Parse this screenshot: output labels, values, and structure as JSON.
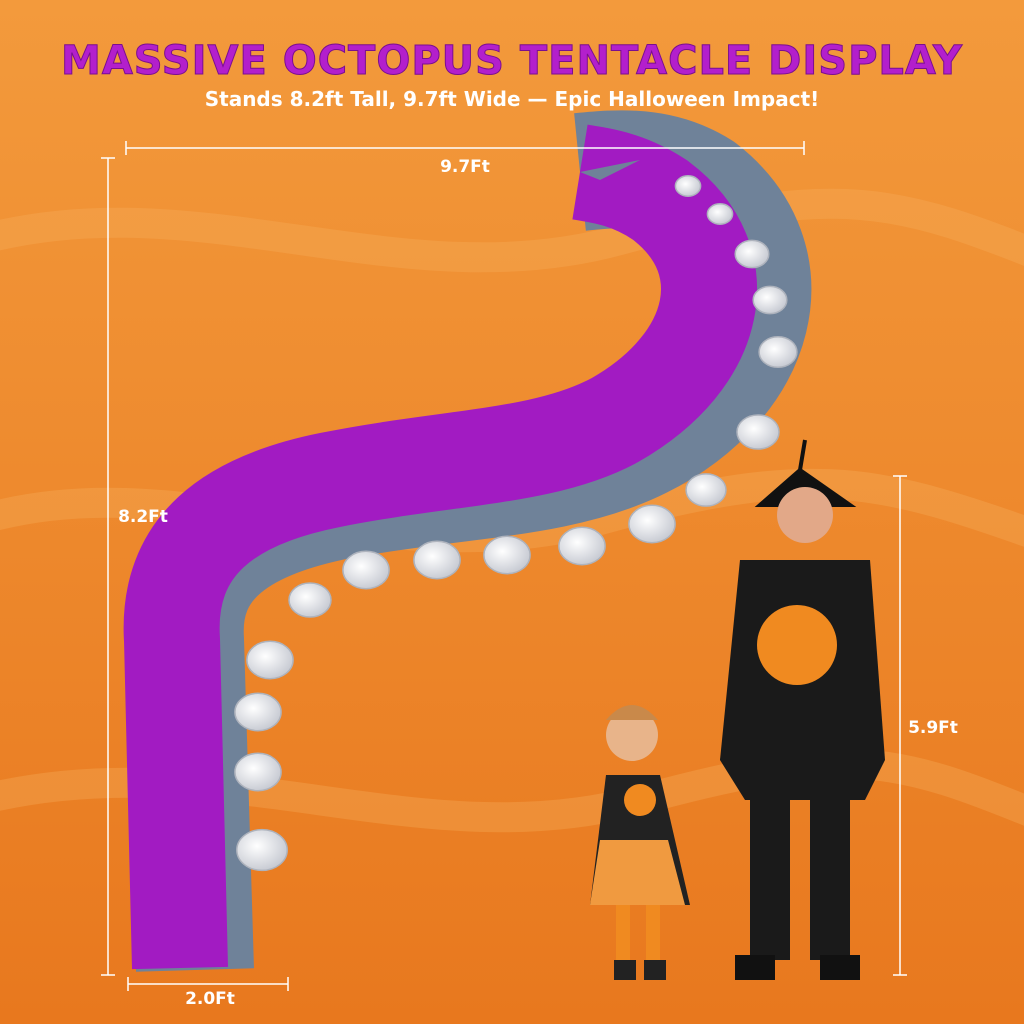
{
  "header": {
    "title": "MASSIVE OCTOPUS TENTACLE DISPLAY",
    "subtitle": "Stands 8.2ft Tall, 9.7ft Wide — Epic Halloween Impact!"
  },
  "dimensions": {
    "width": "9.7Ft",
    "height": "8.2Ft",
    "base": "2.0Ft",
    "person_height": "5.9Ft"
  }
}
